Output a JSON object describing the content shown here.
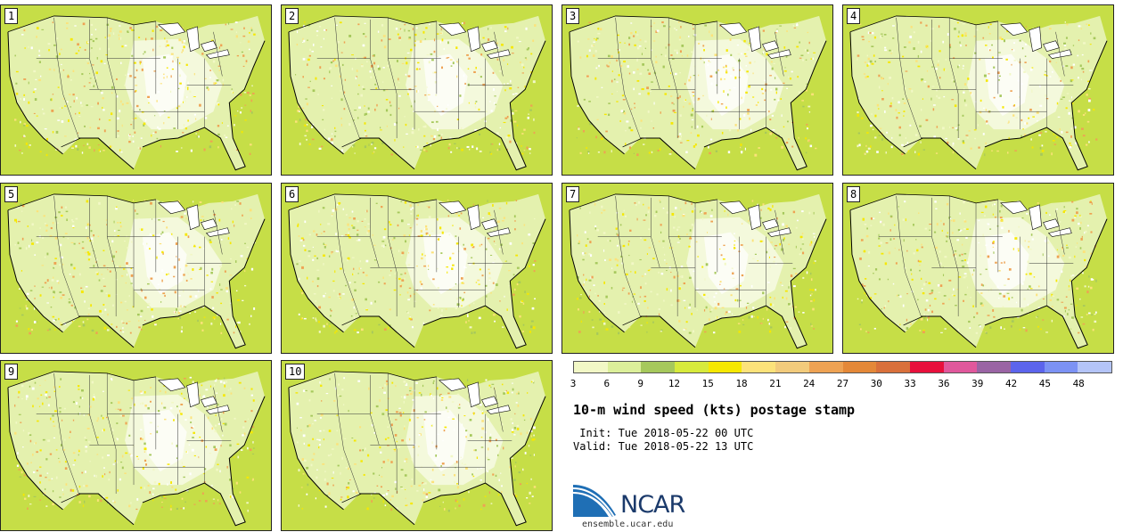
{
  "panels": [
    {
      "label": "1"
    },
    {
      "label": "2"
    },
    {
      "label": "3"
    },
    {
      "label": "4"
    },
    {
      "label": "5"
    },
    {
      "label": "6"
    },
    {
      "label": "7"
    },
    {
      "label": "8"
    },
    {
      "label": "9"
    },
    {
      "label": "10"
    }
  ],
  "colorbar": {
    "colors": [
      "#f2f8c6",
      "#dcef9a",
      "#a6c85c",
      "#d7ea3c",
      "#f6e800",
      "#fce27a",
      "#f2cb7c",
      "#eea253",
      "#e48838",
      "#d9703b",
      "#e8103c",
      "#e0589c",
      "#9a64a4",
      "#5c64ec",
      "#7c92f4",
      "#b4c4f8"
    ],
    "ticks": [
      "3",
      "6",
      "9",
      "12",
      "15",
      "18",
      "21",
      "24",
      "27",
      "30",
      "33",
      "36",
      "39",
      "42",
      "45",
      "48"
    ]
  },
  "title": "10-m wind speed (kts) postage stamp",
  "init": " Init: Tue 2018-05-22 00 UTC",
  "valid": "Valid: Tue 2018-05-22 13 UTC",
  "logo_text": "NCAR",
  "site": "ensemble.ucar.edu"
}
